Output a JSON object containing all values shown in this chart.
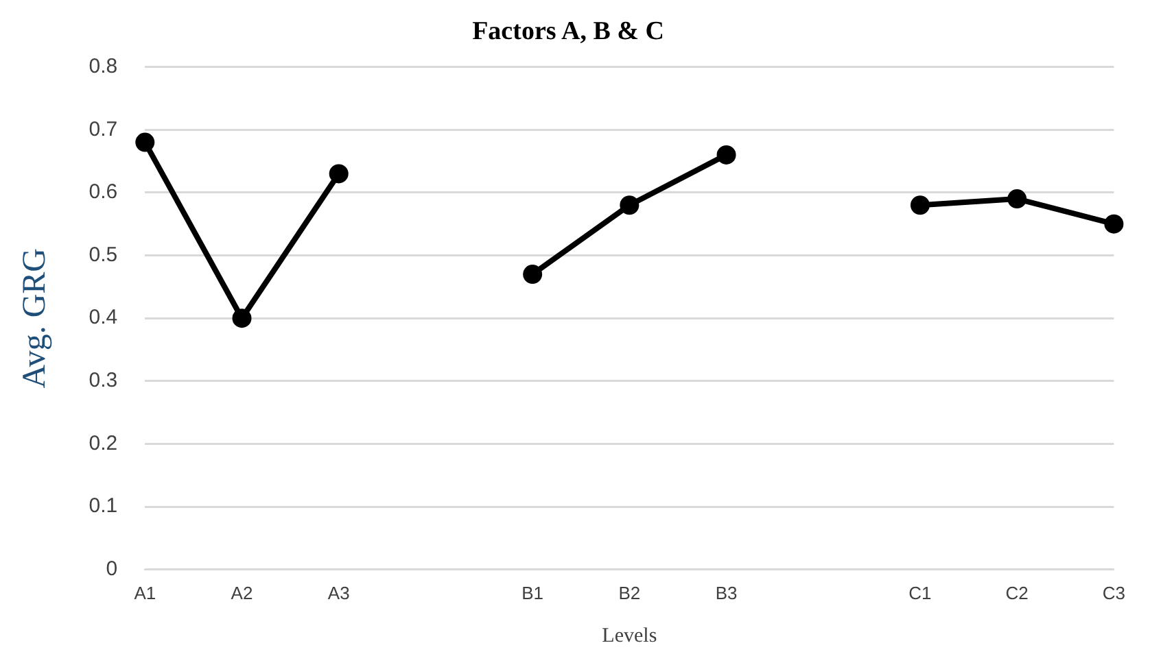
{
  "chart_data": {
    "type": "line",
    "title": "Factors A, B & C",
    "xlabel": "Levels",
    "ylabel": "Avg. GRG",
    "categories": [
      "A1",
      "A2",
      "A3",
      null,
      "B1",
      "B2",
      "B3",
      null,
      "C1",
      "C2",
      "C3"
    ],
    "series": [
      {
        "color": "#000000",
        "values": [
          0.68,
          0.4,
          0.63,
          null,
          0.47,
          0.58,
          0.66,
          null,
          0.58,
          0.59,
          0.55
        ]
      }
    ],
    "ylim": [
      0,
      0.8
    ],
    "yticks": [
      0,
      0.1,
      0.2,
      0.3,
      0.4,
      0.5,
      0.6,
      0.7,
      0.8
    ],
    "grid": "y",
    "legend": false,
    "marker": "circle",
    "line_style": "solid"
  }
}
